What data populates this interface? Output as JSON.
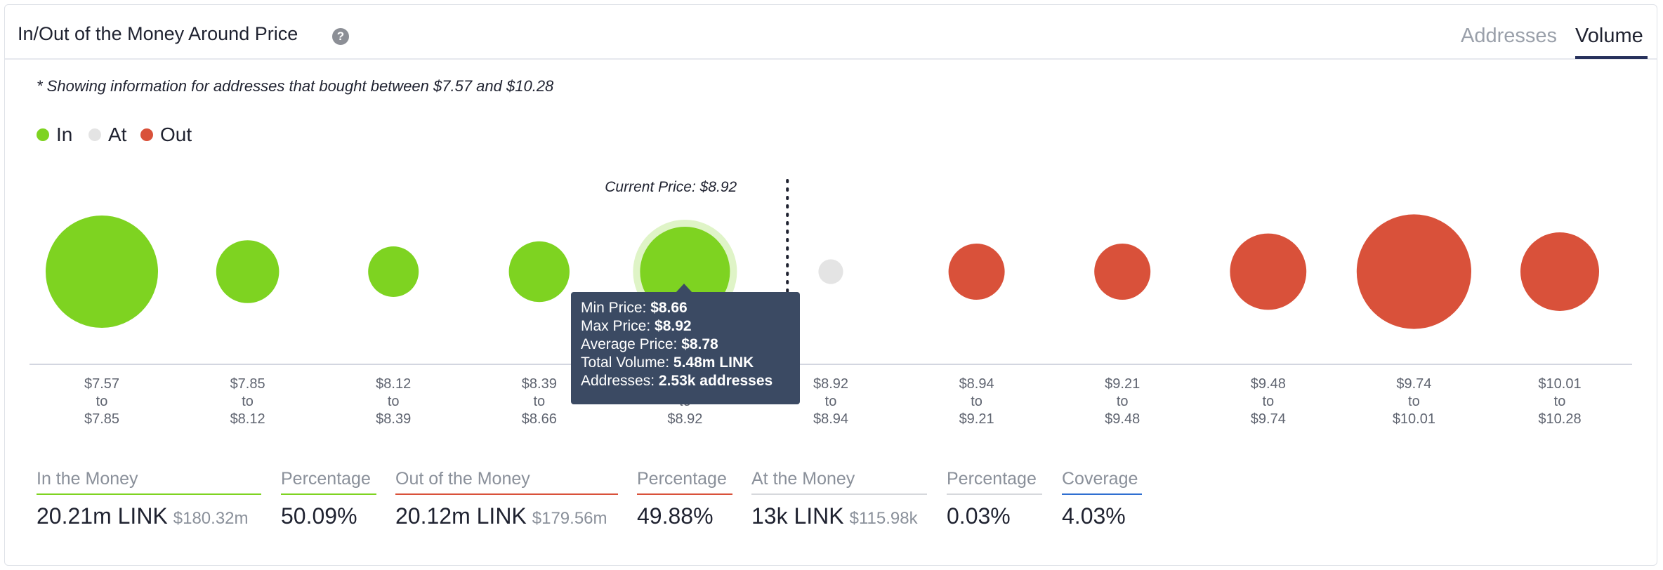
{
  "header": {
    "title": "In/Out of the Money Around Price",
    "help_icon": "question-icon",
    "tabs": [
      "Addresses",
      "Volume"
    ],
    "active_tab": "Volume"
  },
  "note": "* Showing information for addresses that bought between $7.57 and $10.28",
  "legend": [
    {
      "label": "In",
      "color": "#7ed321"
    },
    {
      "label": "At",
      "color": "#e4e4e4"
    },
    {
      "label": "Out",
      "color": "#d9513a"
    }
  ],
  "current_price_label": "Current Price: $8.92",
  "chart_data": {
    "type": "scatter",
    "title": "In/Out of the Money Around Price",
    "x_unit": "price range",
    "size_metric": "Volume",
    "current_price": 8.92,
    "points": [
      {
        "from": "$7.57",
        "to": "$7.85",
        "status": "In",
        "relative_size": 1.0
      },
      {
        "from": "$7.85",
        "to": "$8.12",
        "status": "In",
        "relative_size": 0.56
      },
      {
        "from": "$8.12",
        "to": "$8.39",
        "status": "In",
        "relative_size": 0.45
      },
      {
        "from": "$8.39",
        "to": "$8.66",
        "status": "In",
        "relative_size": 0.54
      },
      {
        "from": "$8.66",
        "to": "$8.92",
        "status": "In",
        "relative_size": 0.8,
        "highlighted": true
      },
      {
        "from": "$8.92",
        "to": "$8.94",
        "status": "At",
        "relative_size": 0.22
      },
      {
        "from": "$8.94",
        "to": "$9.21",
        "status": "Out",
        "relative_size": 0.5
      },
      {
        "from": "$9.21",
        "to": "$9.48",
        "status": "Out",
        "relative_size": 0.5
      },
      {
        "from": "$9.48",
        "to": "$9.74",
        "status": "Out",
        "relative_size": 0.68
      },
      {
        "from": "$9.74",
        "to": "$10.01",
        "status": "Out",
        "relative_size": 1.02
      },
      {
        "from": "$10.01",
        "to": "$10.28",
        "status": "Out",
        "relative_size": 0.7
      }
    ],
    "tick_connector": "to"
  },
  "tooltip": {
    "min_label": "Min Price: ",
    "min_value": "$8.66",
    "max_label": "Max Price: ",
    "max_value": "$8.92",
    "avg_label": "Average Price: ",
    "avg_value": "$8.78",
    "vol_label": "Total Volume: ",
    "vol_value": "5.48m LINK",
    "addr_label": "Addresses: ",
    "addr_value": "2.53k addresses"
  },
  "stats": {
    "in_money": {
      "label": "In the Money",
      "value": "20.21m LINK",
      "sub": "$180.32m",
      "color": "#7ed321"
    },
    "in_pct": {
      "label": "Percentage",
      "value": "50.09%",
      "color": "#7ed321"
    },
    "out_money": {
      "label": "Out of the Money",
      "value": "20.12m LINK",
      "sub": "$179.56m",
      "color": "#d9513a"
    },
    "out_pct": {
      "label": "Percentage",
      "value": "49.88%",
      "color": "#d9513a"
    },
    "at_money": {
      "label": "At the Money",
      "value": "13k LINK",
      "sub": "$115.98k",
      "color": "#d6d8dc"
    },
    "at_pct": {
      "label": "Percentage",
      "value": "0.03%",
      "color": "#d6d8dc"
    },
    "coverage": {
      "label": "Coverage",
      "value": "4.03%",
      "color": "#2f6fd1"
    }
  }
}
